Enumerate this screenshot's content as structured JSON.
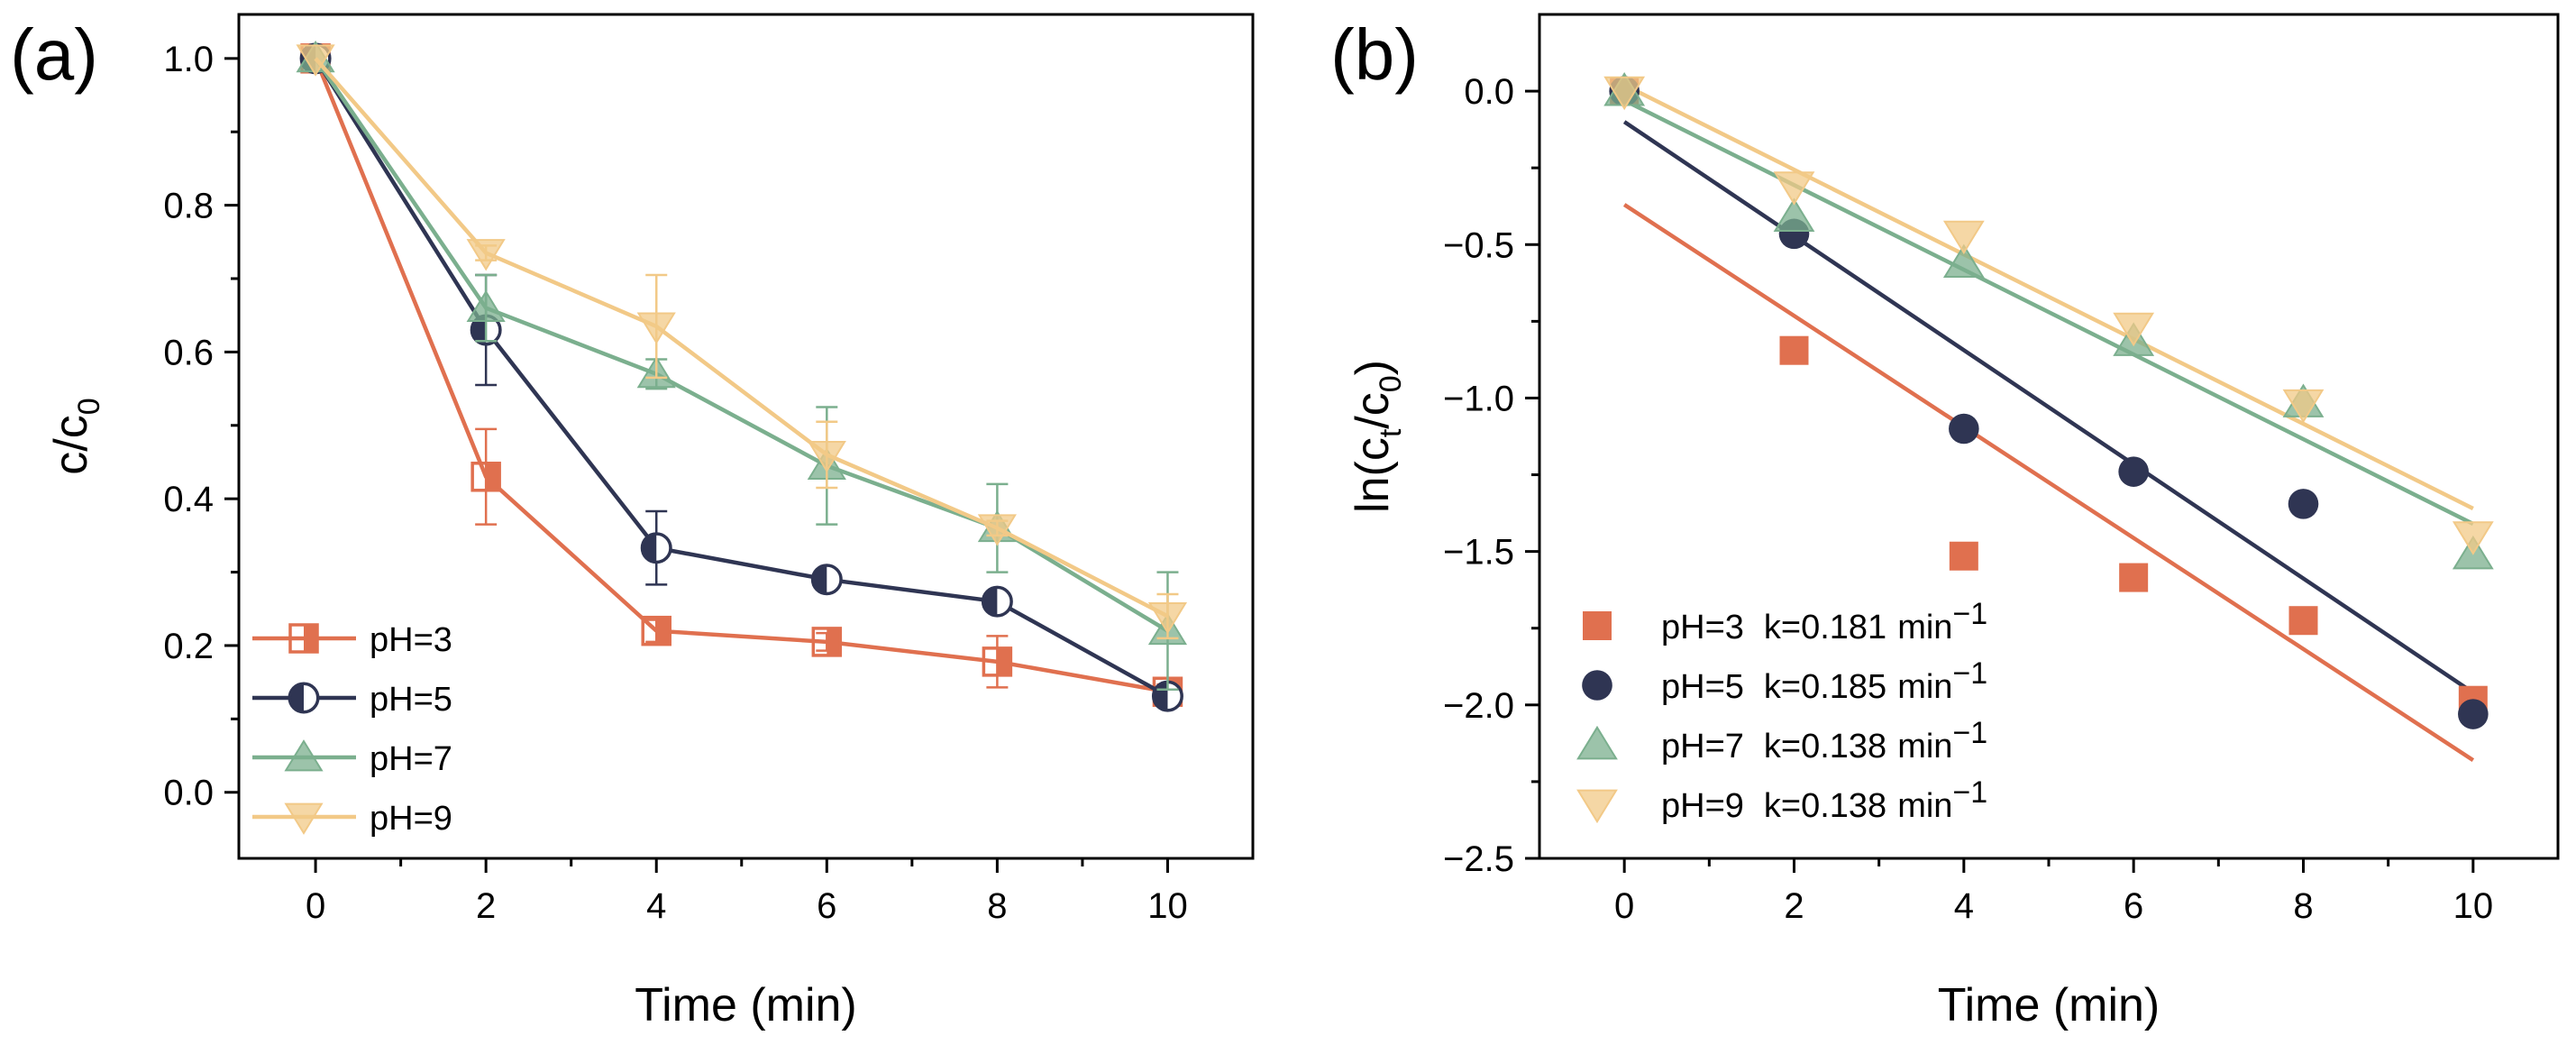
{
  "chart_data": [
    {
      "panel": "(a)",
      "type": "line",
      "xlabel": "Time (min)",
      "ylabel": {
        "main": "c/c",
        "sub": "0"
      },
      "xlim": [
        -0.9,
        11.0
      ],
      "ylim": [
        -0.09,
        1.06
      ],
      "xticks": [
        0,
        2,
        4,
        6,
        8,
        10
      ],
      "xtick_labels": [
        "0",
        "2",
        "4",
        "6",
        "8",
        "10"
      ],
      "yticks": [
        0.0,
        0.2,
        0.4,
        0.6,
        0.8,
        1.0
      ],
      "ytick_labels": [
        "0.0",
        "0.2",
        "0.4",
        "0.6",
        "0.8",
        "1.0"
      ],
      "x": [
        0,
        2,
        4,
        6,
        8,
        10
      ],
      "legend_position": "bottom-left",
      "series": [
        {
          "name": "pH=3",
          "color": "#E0704F",
          "marker": "square-half",
          "values": [
            1.0,
            0.43,
            0.22,
            0.205,
            0.178,
            0.137
          ],
          "errors": [
            0,
            0.065,
            0.015,
            0.012,
            0.035,
            0.01
          ]
        },
        {
          "name": "pH=5",
          "color": "#2F3553",
          "marker": "circle-half",
          "values": [
            1.0,
            0.63,
            0.333,
            0.29,
            0.26,
            0.131
          ],
          "errors": [
            0,
            0.075,
            0.05,
            0.01,
            0.01,
            0.01
          ]
        },
        {
          "name": "pH=7",
          "color": "#7BAF8E",
          "marker": "triangle-up",
          "values": [
            1.0,
            0.66,
            0.57,
            0.445,
            0.36,
            0.22
          ],
          "errors": [
            0,
            0.045,
            0.02,
            0.08,
            0.06,
            0.08
          ]
        },
        {
          "name": "pH=9",
          "color": "#F2C987",
          "marker": "triangle-down",
          "values": [
            1.0,
            0.735,
            0.635,
            0.46,
            0.36,
            0.24
          ],
          "errors": [
            0,
            0.01,
            0.07,
            0.045,
            0.01,
            0.03
          ]
        }
      ]
    },
    {
      "panel": "(b)",
      "type": "scatter",
      "xlabel": "Time (min)",
      "ylabel": {
        "pre": "ln(c",
        "sub1": "t",
        "mid": "/c",
        "sub2": "0",
        "post": ")"
      },
      "xlim": [
        -1.0,
        11.0
      ],
      "ylim": [
        -2.5,
        0.25
      ],
      "xticks": [
        0,
        2,
        4,
        6,
        8,
        10
      ],
      "xtick_labels": [
        "0",
        "2",
        "4",
        "6",
        "8",
        "10"
      ],
      "yticks": [
        0.0,
        -0.5,
        -1.0,
        -1.5,
        -2.0,
        -2.5
      ],
      "ytick_labels": [
        "0.0",
        "−0.5",
        "−1.0",
        "−1.5",
        "−2.0",
        "−2.5"
      ],
      "x": [
        0,
        2,
        4,
        6,
        8,
        10
      ],
      "legend_position": "bottom-left",
      "k_unit": "min",
      "k_unit_exp": "−1",
      "series": [
        {
          "name": "pH=3",
          "k_label": "k=0.181",
          "color": "#E0704F",
          "marker": "square",
          "values": [
            0.0,
            -0.845,
            -1.515,
            -1.585,
            -1.725,
            -1.985
          ],
          "fit": [
            -0.37,
            -2.18
          ]
        },
        {
          "name": "pH=5",
          "k_label": "k=0.185",
          "color": "#2F3553",
          "marker": "circle",
          "values": [
            0.0,
            -0.465,
            -1.1,
            -1.24,
            -1.345,
            -2.03
          ],
          "fit": [
            -0.1,
            -1.96
          ]
        },
        {
          "name": "pH=7",
          "k_label": "k=0.138",
          "color": "#7BAF8E",
          "marker": "triangle-up",
          "values": [
            0.0,
            -0.41,
            -0.56,
            -0.815,
            -1.015,
            -1.51
          ],
          "fit": [
            -0.03,
            -1.41
          ]
        },
        {
          "name": "pH=9",
          "k_label": "k=0.138",
          "color": "#F2C987",
          "marker": "triangle-down",
          "values": [
            0.0,
            -0.31,
            -0.47,
            -0.77,
            -1.02,
            -1.45
          ],
          "fit": [
            0.02,
            -1.36
          ]
        }
      ]
    }
  ]
}
